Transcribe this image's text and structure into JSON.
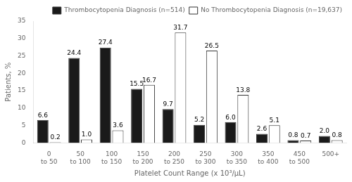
{
  "chart_data": {
    "type": "bar",
    "categories": [
      "0\nto 50",
      "50\nto 100",
      "100\nto 150",
      "150\nto 200",
      "200\nto 250",
      "250\nto 300",
      "300\nto 350",
      "350\nto 400",
      "450\nto 500",
      "500+"
    ],
    "series": [
      {
        "name": "Thrombocytopenia Diagnosis (n=514)",
        "color": "#1a1a1a",
        "values": [
          6.6,
          24.4,
          27.4,
          15.5,
          9.7,
          5.2,
          6.0,
          2.6,
          0.8,
          2.0
        ],
        "value_labels": [
          "6.6",
          "24.4",
          "27.4",
          "15.5",
          "9.7",
          "5.2",
          "6.0",
          "2.6",
          "0.8",
          "2.0"
        ]
      },
      {
        "name": "No Thrombocytopenia Diagnosis (n=19,637)",
        "color": "#ffffff",
        "values": [
          0.2,
          1.0,
          3.6,
          16.7,
          31.7,
          26.5,
          13.8,
          5.1,
          0.7,
          0.8
        ],
        "value_labels": [
          "0.2",
          "1.0",
          "3.6",
          "16.7",
          "31.7",
          "26.5",
          "13.8",
          "5.1",
          "0.7",
          "0.8"
        ]
      }
    ],
    "xlabel": "Platelet Count Range (x 10³/μL)",
    "ylabel": "Patients, %",
    "ylim": [
      0,
      35
    ],
    "yticks": [
      0,
      5,
      10,
      15,
      20,
      25,
      30,
      35
    ],
    "grid": false,
    "legend": "upper right",
    "data_labels": true
  }
}
